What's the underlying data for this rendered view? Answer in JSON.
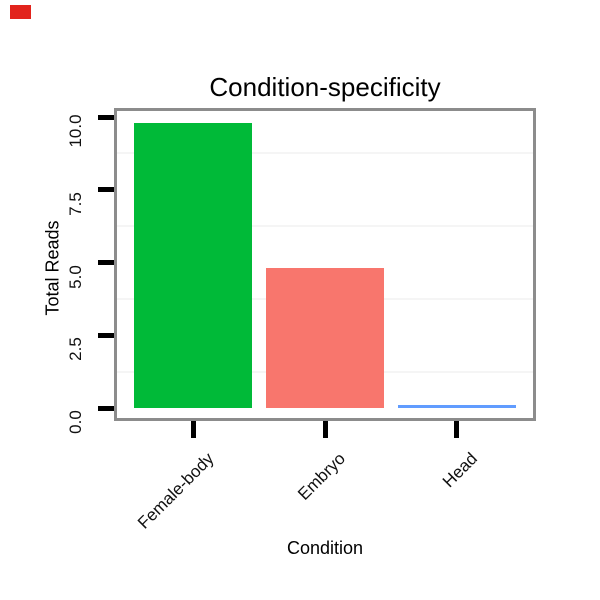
{
  "marker": {
    "label": "red-marker",
    "color": "#e2231c"
  },
  "chart_data": {
    "type": "bar",
    "title": "Condition-specificity",
    "xlabel": "Condition",
    "ylabel": "Total Reads",
    "categories": [
      "Female-body",
      "Embryo",
      "Head"
    ],
    "values": [
      9.8,
      4.8,
      0.1
    ],
    "bar_colors": [
      "#00BA38",
      "#F8766D",
      "#619CFF"
    ],
    "ylim": [
      0,
      10
    ],
    "ytick_labels": [
      "0.0",
      "2.5",
      "5.0",
      "7.5",
      "10.0"
    ],
    "ytick_values": [
      0,
      2.5,
      5,
      7.5,
      10
    ],
    "grid": {
      "major": false,
      "minor_horizontal": true,
      "minor_color": "#f5f5f5"
    },
    "legend_position": "none",
    "panel_border_color": "#8c8c8c",
    "tick_color": "#000000",
    "text_color": "#000000"
  }
}
